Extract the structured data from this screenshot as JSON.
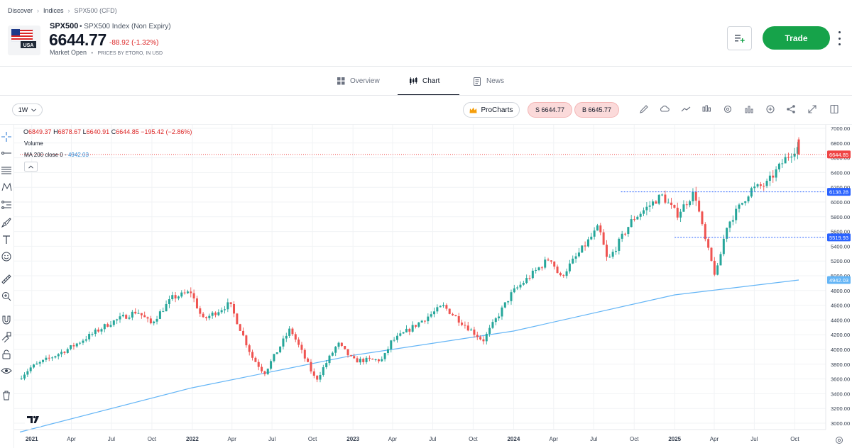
{
  "breadcrumb": {
    "items": [
      "Discover",
      "Indices",
      "SPX500 (CFD)"
    ]
  },
  "instrument": {
    "symbol": "SPX500",
    "full_name": "SPX500 Index (Non Expiry)",
    "price": "6644.77",
    "change": "-88.92 (-1.32%)",
    "market_status": "Market Open",
    "price_source": "PRICES BY ETORO, IN USD",
    "flag_label": "USA"
  },
  "actions": {
    "trade_label": "Trade"
  },
  "tabs": [
    {
      "label": "Overview",
      "icon": "grid-icon",
      "active": false
    },
    {
      "label": "Chart",
      "icon": "candles-icon",
      "active": true
    },
    {
      "label": "News",
      "icon": "news-icon",
      "active": false
    }
  ],
  "toolbar": {
    "timeframe": "1W",
    "prochart_label": "ProCharts",
    "sell_label": "S 6644.77",
    "buy_label": "B 6645.77",
    "icons": [
      "pencil-icon",
      "cloud-icon",
      "line-chart-icon",
      "candlestick-icon",
      "settings-icon",
      "bar-chart-icon",
      "plus-circle-icon",
      "share-icon",
      "expand-icon",
      "panel-icon"
    ]
  },
  "left_tools": [
    "crosshair-icon",
    "trend-line-icon",
    "fib-icon",
    "pattern-icon",
    "measure-icon",
    "brush-icon",
    "text-icon",
    "emoji-icon",
    "ruler-icon",
    "zoom-icon",
    "magnet-icon",
    "lock-drawing-icon",
    "unlock-icon",
    "eye-icon",
    "trash-icon"
  ],
  "legend": {
    "o_label": "O",
    "o": "6849.37",
    "h_label": "H",
    "h": "6878.67",
    "l_label": "L",
    "l": "6640.91",
    "c_label": "C",
    "c": "6644.85",
    "change": "−195.42 (−2.86%)",
    "volume_label": "Volume",
    "ma_label": "MA 200 close 0",
    "ma_value": "4942.03"
  },
  "colors": {
    "up": "#26a69a",
    "down": "#ef5350",
    "ma_line": "#64b5f6",
    "trade": "#16a34a",
    "price_tag": "#ef4444",
    "level_tag": "#2962ff"
  },
  "chart_data": {
    "type": "candlestick",
    "interval": "1W",
    "ylim": [
      2900,
      7060
    ],
    "y_ticks": [
      3000,
      3200,
      3400,
      3600,
      3800,
      4000,
      4200,
      4400,
      4600,
      4800,
      5000,
      5200,
      5400,
      5600,
      5800,
      6000,
      6200,
      6400,
      6600,
      6800,
      7000
    ],
    "x_start": "2020-12-05",
    "x_ticks": [
      {
        "label": "2021",
        "date": "2021-01-01"
      },
      {
        "label": "Apr",
        "date": "2021-04-01"
      },
      {
        "label": "Jul",
        "date": "2021-07-01"
      },
      {
        "label": "Oct",
        "date": "2021-10-01"
      },
      {
        "label": "2022",
        "date": "2022-01-01"
      },
      {
        "label": "Apr",
        "date": "2022-04-01"
      },
      {
        "label": "Jul",
        "date": "2022-07-01"
      },
      {
        "label": "Oct",
        "date": "2022-10-01"
      },
      {
        "label": "2023",
        "date": "2023-01-01"
      },
      {
        "label": "Apr",
        "date": "2023-04-01"
      },
      {
        "label": "Jul",
        "date": "2023-07-01"
      },
      {
        "label": "Oct",
        "date": "2023-10-01"
      },
      {
        "label": "2024",
        "date": "2024-01-01"
      },
      {
        "label": "Apr",
        "date": "2024-04-01"
      },
      {
        "label": "Jul",
        "date": "2024-07-01"
      },
      {
        "label": "Oct",
        "date": "2024-10-01"
      },
      {
        "label": "2025",
        "date": "2025-01-01"
      },
      {
        "label": "Apr",
        "date": "2025-04-01"
      },
      {
        "label": "Jul",
        "date": "2025-07-01"
      },
      {
        "label": "Oct",
        "date": "2025-10-01"
      }
    ],
    "close_anchors": [
      [
        "2020-12-05",
        3600
      ],
      [
        "2021-01-01",
        3750
      ],
      [
        "2021-04-01",
        4020
      ],
      [
        "2021-07-01",
        4360
      ],
      [
        "2021-09-01",
        4520
      ],
      [
        "2021-10-02",
        4350
      ],
      [
        "2021-11-20",
        4700
      ],
      [
        "2022-01-01",
        4780
      ],
      [
        "2022-01-28",
        4400
      ],
      [
        "2022-03-30",
        4620
      ],
      [
        "2022-05-20",
        3900
      ],
      [
        "2022-06-17",
        3680
      ],
      [
        "2022-08-15",
        4280
      ],
      [
        "2022-10-12",
        3580
      ],
      [
        "2022-12-01",
        4080
      ],
      [
        "2023-01-05",
        3850
      ],
      [
        "2023-03-13",
        3860
      ],
      [
        "2023-04-01",
        4100
      ],
      [
        "2023-07-28",
        4590
      ],
      [
        "2023-10-27",
        4120
      ],
      [
        "2024-01-01",
        4770
      ],
      [
        "2024-03-28",
        5250
      ],
      [
        "2024-04-19",
        4970
      ],
      [
        "2024-07-16",
        5660
      ],
      [
        "2024-08-05",
        5190
      ],
      [
        "2024-09-30",
        5760
      ],
      [
        "2024-12-06",
        6090
      ],
      [
        "2025-01-10",
        5830
      ],
      [
        "2025-02-19",
        6140
      ],
      [
        "2025-03-13",
        5520
      ],
      [
        "2025-04-08",
        4980
      ],
      [
        "2025-05-02",
        5670
      ],
      [
        "2025-06-27",
        6170
      ],
      [
        "2025-08-01",
        6240
      ],
      [
        "2025-09-12",
        6580
      ],
      [
        "2025-10-08",
        6740
      ]
    ],
    "last_candle": {
      "date": "2025-10-10",
      "open": 6849.37,
      "high": 6878.67,
      "low": 6640.91,
      "close": 6644.85
    },
    "ma_200": [
      [
        "2020-12-05",
        2880
      ],
      [
        "2021-12-31",
        3480
      ],
      [
        "2023-01-01",
        3920
      ],
      [
        "2024-01-01",
        4250
      ],
      [
        "2025-01-01",
        4740
      ],
      [
        "2025-10-10",
        4942.03
      ]
    ],
    "price_lines": [
      {
        "label": "6644.85",
        "value": 6644.85,
        "style": "dotted",
        "color": "#ef4444",
        "from": "2020-12-05"
      },
      {
        "label": "6138.28",
        "value": 6138.28,
        "style": "dashed",
        "color": "#2962ff",
        "from": "2024-09-01"
      },
      {
        "label": "5519.93",
        "value": 5519.93,
        "style": "dashed",
        "color": "#2962ff",
        "from": "2025-01-01"
      },
      {
        "label": "4942.03",
        "value": 4942.03,
        "style": "none",
        "color": "#64b5f6",
        "from": "2020-12-05"
      }
    ]
  }
}
